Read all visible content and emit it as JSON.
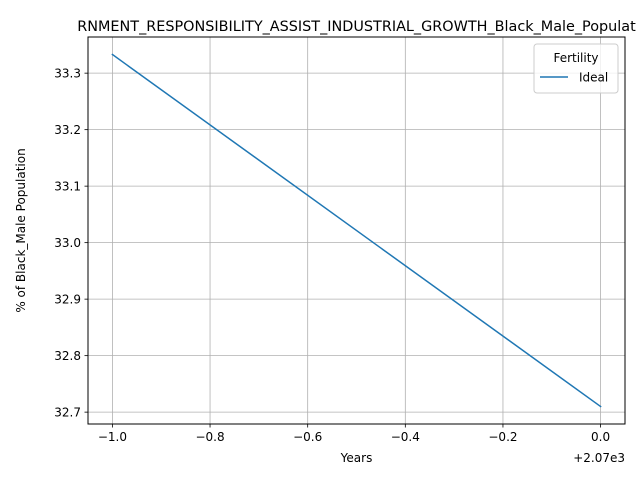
{
  "chart_data": {
    "type": "line",
    "title": "RNMENT_RESPONSIBILITY_ASSIST_INDUSTRIAL_GROWTH_Black_Male_Populat",
    "xlabel": "Years",
    "ylabel": "% of Black_Male Population",
    "x_offset_label": "+2.07e3",
    "x": [
      2069,
      2070
    ],
    "series": [
      {
        "name": "Ideal",
        "values": [
          33.333,
          32.71
        ],
        "color": "#1f77b4"
      }
    ],
    "xlim": [
      2068.95,
      2070.05
    ],
    "ylim": [
      32.679,
      33.364
    ],
    "x_ticks": [
      {
        "value": 2069.0,
        "label": "−1.0"
      },
      {
        "value": 2069.2,
        "label": "−0.8"
      },
      {
        "value": 2069.4,
        "label": "−0.6"
      },
      {
        "value": 2069.6,
        "label": "−0.4"
      },
      {
        "value": 2069.8,
        "label": "−0.2"
      },
      {
        "value": 2070.0,
        "label": "0.0"
      }
    ],
    "y_ticks": [
      {
        "value": 32.7,
        "label": "32.7"
      },
      {
        "value": 32.8,
        "label": "32.8"
      },
      {
        "value": 32.9,
        "label": "32.9"
      },
      {
        "value": 33.0,
        "label": "33.0"
      },
      {
        "value": 33.1,
        "label": "33.1"
      },
      {
        "value": 33.2,
        "label": "33.2"
      },
      {
        "value": 33.3,
        "label": "33.3"
      }
    ],
    "grid": true,
    "legend": {
      "title": "Fertility",
      "placement": "top-right"
    }
  }
}
